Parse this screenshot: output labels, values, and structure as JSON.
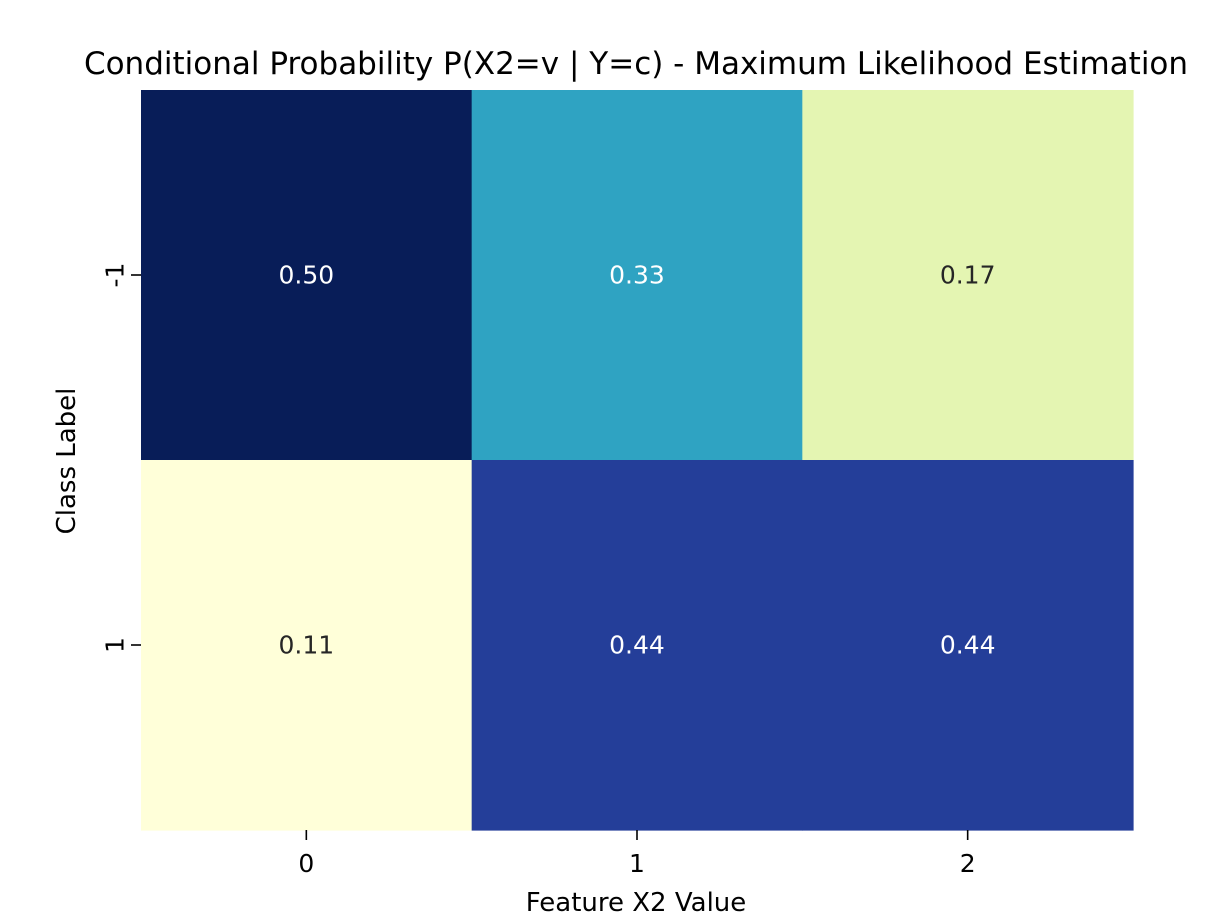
{
  "chart_data": {
    "type": "heatmap",
    "title": "Conditional Probability P(X2=v | Y=c) - Maximum Likelihood Estimation",
    "xlabel": "Feature X2 Value",
    "ylabel": "Class Label",
    "x_categories": [
      "0",
      "1",
      "2"
    ],
    "y_categories": [
      "-1",
      "1"
    ],
    "values": [
      [
        0.5,
        0.33,
        0.17
      ],
      [
        0.11,
        0.44,
        0.44
      ]
    ],
    "value_format": "0.00",
    "colormap": "YlGnBu",
    "color_min": 0.11,
    "color_max": 0.5,
    "colorbar": false,
    "grid": false
  },
  "colors": {
    "colormap_stops": [
      "#ffffd9",
      "#edf8b1",
      "#c7e9b4",
      "#7fcdbb",
      "#41b6c4",
      "#1d91c0",
      "#225ea8",
      "#253494",
      "#081d58"
    ],
    "label_dark": "#262626",
    "label_light": "#ffffff"
  }
}
